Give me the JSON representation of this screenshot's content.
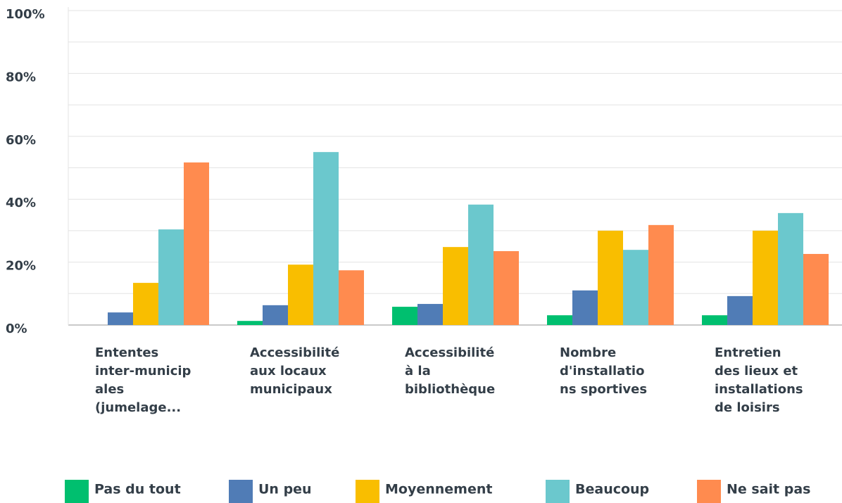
{
  "chart_data": {
    "type": "bar",
    "categories": [
      [
        "Ententes",
        "inter-municip",
        "ales",
        "(jumelage..."
      ],
      [
        "Accessibilité",
        "aux locaux",
        "municipaux"
      ],
      [
        "Accessibilité",
        "à la",
        "bibliothèque"
      ],
      [
        "Nombre",
        "d'installatio",
        "ns sportives"
      ],
      [
        "Entretien",
        "des lieux et",
        "installations",
        "de loisirs"
      ]
    ],
    "series": [
      {
        "name": "Pas du tout",
        "color": "#00bf6f",
        "values": [
          0,
          1.3,
          5.8,
          3.1,
          3.1
        ]
      },
      {
        "name": "Un peu",
        "color": "#507cb6",
        "values": [
          4,
          6.3,
          6.7,
          11,
          9.2
        ]
      },
      {
        "name": "Moyennement",
        "color": "#f9be00",
        "values": [
          13.4,
          19.2,
          24.8,
          30,
          30
        ]
      },
      {
        "name": "Beaucoup",
        "color": "#6bc8cd",
        "values": [
          30.4,
          55,
          38.3,
          23.9,
          35.6
        ]
      },
      {
        "name": "Ne sait pas",
        "color": "#ff8b4f",
        "values": [
          51.7,
          17.4,
          23.5,
          31.8,
          22.6
        ]
      }
    ],
    "ylim": [
      0,
      100
    ],
    "yticks": [
      {
        "value": 0,
        "label": "0%"
      },
      {
        "value": 20,
        "label": "20%"
      },
      {
        "value": 40,
        "label": "40%"
      },
      {
        "value": 60,
        "label": "60%"
      },
      {
        "value": 80,
        "label": "80%"
      },
      {
        "value": 100,
        "label": "100%"
      }
    ],
    "minor_yticks": [
      10,
      30,
      50,
      70,
      90
    ],
    "grid": true,
    "legend": "bottom"
  }
}
